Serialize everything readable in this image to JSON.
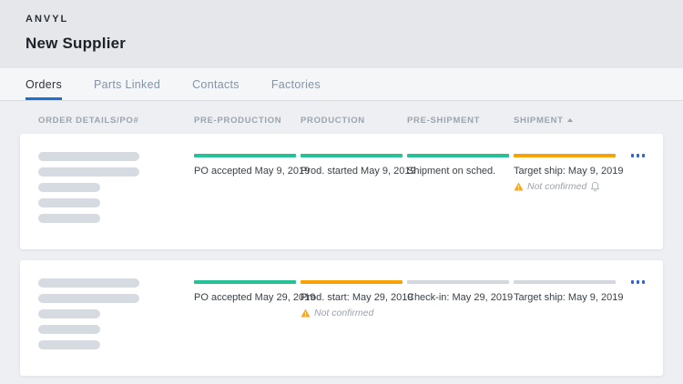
{
  "brand": "ANVYL",
  "page_title": "New Supplier",
  "tabs": [
    {
      "label": "Orders",
      "active": true
    },
    {
      "label": "Parts Linked",
      "active": false
    },
    {
      "label": "Contacts",
      "active": false
    },
    {
      "label": "Factories",
      "active": false
    }
  ],
  "table": {
    "columns": [
      "Order Details/PO#",
      "Pre-Production",
      "Production",
      "Pre-Shipment",
      "Shipment"
    ],
    "sort": {
      "column": "Shipment",
      "direction": "asc"
    },
    "rows": [
      {
        "stages": [
          {
            "name": "pre-production",
            "bar_color": "#26c196",
            "text": "PO accepted May 9, 2019"
          },
          {
            "name": "production",
            "bar_color": "#26c196",
            "text": "Prod. started May 9, 2019"
          },
          {
            "name": "pre-shipment",
            "bar_color": "#26c196",
            "text": "Shipment on sched."
          },
          {
            "name": "shipment",
            "bar_color": "#f5a306",
            "text": "Target ship: May 9, 2019",
            "warning": "Not confirmed",
            "bell": true
          }
        ]
      },
      {
        "stages": [
          {
            "name": "pre-production",
            "bar_color": "#26c196",
            "text": "PO accepted May 29, 2019"
          },
          {
            "name": "production",
            "bar_color": "#f5a306",
            "text": "Prod. start: May 29, 2019",
            "warning": "Not confirmed",
            "bell": false
          },
          {
            "name": "pre-shipment",
            "bar_color": "#d4d8de",
            "text": "Check-in: May 29, 2019"
          },
          {
            "name": "shipment",
            "bar_color": "#d4d8de",
            "text": "Target ship: May 9, 2019"
          }
        ]
      }
    ]
  },
  "colors": {
    "accent_blue": "#1f66e8",
    "tab_underline": "#1c70d2",
    "stage_complete_green": "#26c196",
    "stage_warning_orange": "#f5a306",
    "stage_pending_gray": "#d4d8de",
    "warning_icon": "#f5a623"
  }
}
